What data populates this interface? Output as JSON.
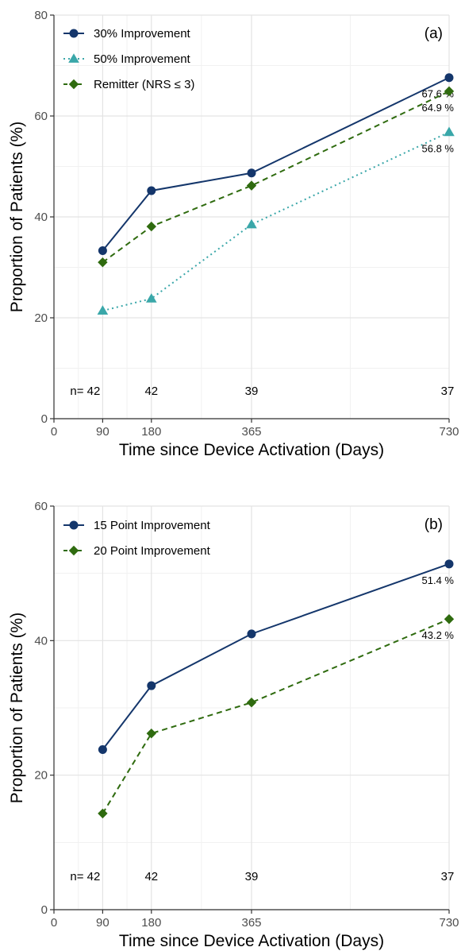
{
  "chart_data": [
    {
      "type": "line",
      "panel_label": "(a)",
      "xlabel": "Time since Device Activation (Days)",
      "ylabel": "Proportion of Patients (%)",
      "xlim": [
        0,
        730
      ],
      "ylim": [
        0,
        80
      ],
      "x_ticks": [
        0,
        90,
        180,
        365,
        730
      ],
      "y_ticks": [
        0,
        20,
        40,
        60,
        80
      ],
      "x": [
        90,
        180,
        365,
        730
      ],
      "n_labels": [
        "n= 42",
        "42",
        "39",
        "37"
      ],
      "legend_position": "top-left",
      "grid": true,
      "series": [
        {
          "name": "30% Improvement",
          "values": [
            33.3,
            45.2,
            48.7,
            67.6
          ],
          "color": "#14366b",
          "marker": "circle",
          "line": "solid",
          "end_label": "67.6 %"
        },
        {
          "name": "50% Improvement",
          "values": [
            21.4,
            23.8,
            38.5,
            56.8
          ],
          "color": "#3aa7a9",
          "marker": "triangle",
          "line": "dotted",
          "end_label": "56.8 %"
        },
        {
          "name": "Remitter (NRS ≤ 3)",
          "values": [
            31.0,
            38.1,
            46.2,
            64.9
          ],
          "color": "#2f6b0f",
          "marker": "diamond",
          "line": "dashed",
          "end_label": "64.9 %"
        }
      ]
    },
    {
      "type": "line",
      "panel_label": "(b)",
      "xlabel": "Time since Device Activation (Days)",
      "ylabel": "Proportion of Patients (%)",
      "xlim": [
        0,
        730
      ],
      "ylim": [
        0,
        60
      ],
      "x_ticks": [
        0,
        90,
        180,
        365,
        730
      ],
      "y_ticks": [
        0,
        20,
        40,
        60
      ],
      "x": [
        90,
        180,
        365,
        730
      ],
      "n_labels": [
        "n= 42",
        "42",
        "39",
        "37"
      ],
      "legend_position": "top-left",
      "grid": true,
      "series": [
        {
          "name": "15 Point Improvement",
          "values": [
            23.8,
            33.3,
            41.0,
            51.4
          ],
          "color": "#14366b",
          "marker": "circle",
          "line": "solid",
          "end_label": "51.4 %"
        },
        {
          "name": "20 Point Improvement",
          "values": [
            14.3,
            26.2,
            30.8,
            43.2
          ],
          "color": "#2f6b0f",
          "marker": "diamond",
          "line": "dashed",
          "end_label": "43.2 %"
        }
      ]
    }
  ]
}
